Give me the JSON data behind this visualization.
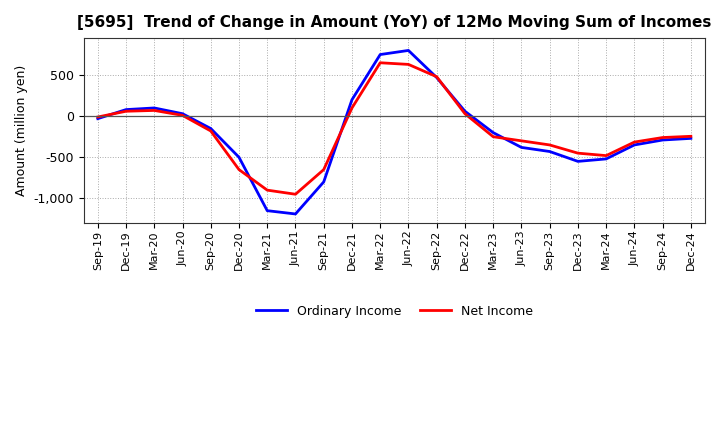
{
  "title": "[5695]  Trend of Change in Amount (YoY) of 12Mo Moving Sum of Incomes",
  "ylabel": "Amount (million yen)",
  "x_labels": [
    "Sep-19",
    "Dec-19",
    "Mar-20",
    "Jun-20",
    "Sep-20",
    "Dec-20",
    "Mar-21",
    "Jun-21",
    "Sep-21",
    "Dec-21",
    "Mar-22",
    "Jun-22",
    "Sep-22",
    "Dec-22",
    "Mar-23",
    "Jun-23",
    "Sep-23",
    "Dec-23",
    "Mar-24",
    "Jun-24",
    "Sep-24",
    "Dec-24"
  ],
  "ordinary_income": [
    -30,
    80,
    100,
    30,
    -150,
    -500,
    -1150,
    -1190,
    -800,
    200,
    750,
    800,
    470,
    60,
    -200,
    -380,
    -430,
    -550,
    -520,
    -350,
    -290,
    -270
  ],
  "net_income": [
    -10,
    60,
    70,
    10,
    -180,
    -650,
    -900,
    -950,
    -650,
    100,
    650,
    630,
    480,
    30,
    -250,
    -300,
    -350,
    -450,
    -480,
    -315,
    -260,
    -245
  ],
  "ordinary_income_color": "#0000ff",
  "net_income_color": "#ff0000",
  "line_width": 2.0,
  "background_color": "#ffffff",
  "grid_color": "#aaaaaa",
  "ylim": [
    -1300,
    950
  ],
  "yticks": [
    -1000,
    -500,
    0,
    500
  ],
  "legend_labels": [
    "Ordinary Income",
    "Net Income"
  ]
}
